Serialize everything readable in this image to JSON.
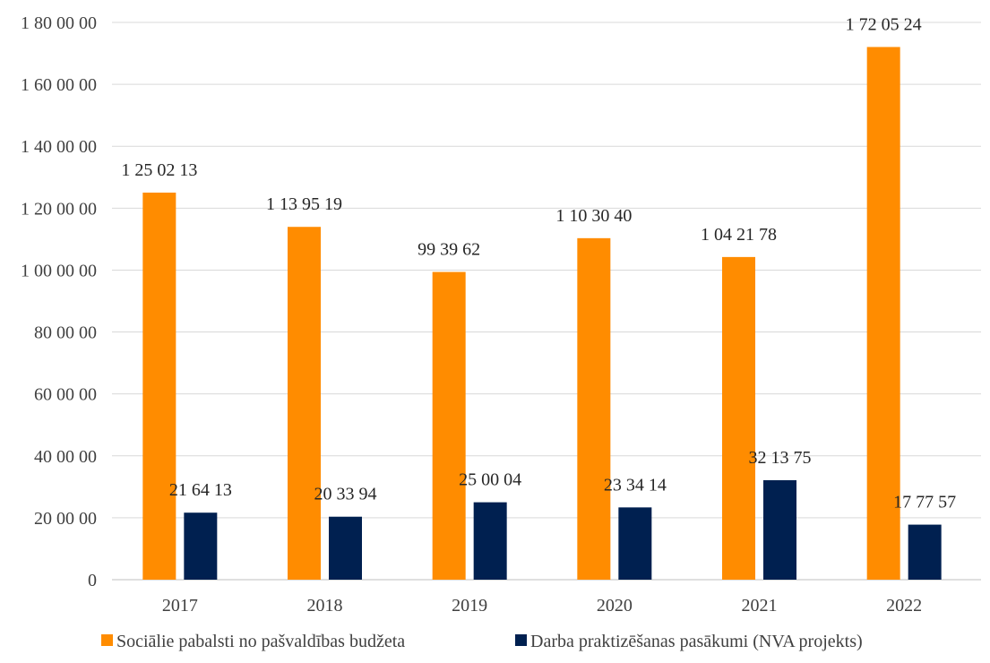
{
  "chart_data": {
    "type": "bar",
    "categories": [
      "2017",
      "2018",
      "2019",
      "2020",
      "2021",
      "2022"
    ],
    "series": [
      {
        "name": "Sociālie pabalsti no pašvaldības budžeta",
        "color": "#ff8c00",
        "values": [
          1250213,
          1139519,
          993962,
          1103040,
          1042178,
          1720524
        ],
        "labels": [
          "1 25 02 13",
          "1 13 95 19",
          "99 39 62",
          "1 10 30 40",
          "1 04 21 78",
          "1 72 05 24"
        ]
      },
      {
        "name": "Darba praktizēšanas pasākumi (NVA projekts)",
        "color": "#002050",
        "values": [
          216413,
          203394,
          250004,
          233414,
          321375,
          177757
        ],
        "labels": [
          "21 64 13",
          "20 33 94",
          "25 00 04",
          "23 34 14",
          "32 13 75",
          "17 77 57"
        ]
      }
    ],
    "ylim": [
      0,
      1800000
    ],
    "yticks": [
      0,
      200000,
      400000,
      600000,
      800000,
      1000000,
      1200000,
      1400000,
      1600000,
      1800000
    ],
    "ytick_labels": [
      "0",
      "20 00 00",
      "40 00 00",
      "60 00 00",
      "80 00 00",
      "1 00 00 00",
      "1 20 00 00",
      "1 40 00 00",
      "1 60 00 00",
      "1 80 00 00"
    ],
    "grid": true,
    "legend_position": "bottom",
    "title": "",
    "xlabel": "",
    "ylabel": ""
  }
}
